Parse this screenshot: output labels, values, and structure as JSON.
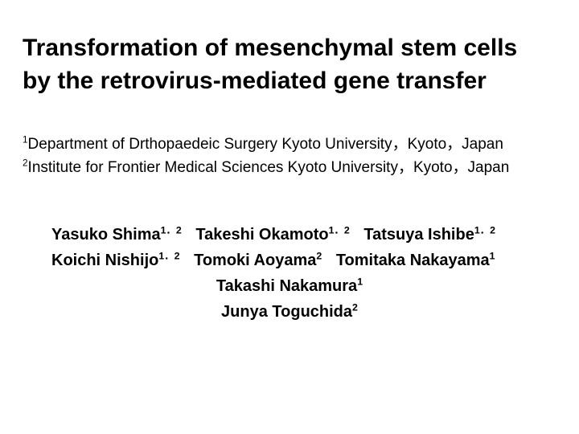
{
  "title_line1": "Transformation of mesenchymal stem cells",
  "title_line2": "by the retrovirus-mediated gene transfer",
  "affiliations": [
    {
      "num": "1",
      "text": "Department of Drthopaedeic Surgery Kyoto University，Kyoto，Japan"
    },
    {
      "num": "2",
      "text": "Institute for Frontier Medical Sciences Kyoto University，Kyoto，Japan"
    }
  ],
  "author_lines": [
    {
      "center": false,
      "authors": [
        {
          "name": "Yasuko Shima",
          "sup": "1．2"
        },
        {
          "name": "Takeshi Okamoto",
          "sup": "1．2"
        },
        {
          "name": "Tatsuya Ishibe",
          "sup": "1．2"
        }
      ]
    },
    {
      "center": false,
      "authors": [
        {
          "name": "Koichi Nishijo",
          "sup": "1．2"
        },
        {
          "name": "Tomoki Aoyama",
          "sup": "2"
        },
        {
          "name": "Tomitaka Nakayama",
          "sup": "1"
        }
      ]
    },
    {
      "center": true,
      "authors": [
        {
          "name": "Takashi Nakamura",
          "sup": "1"
        }
      ]
    },
    {
      "center": true,
      "authors": [
        {
          "name": "Junya Toguchida",
          "sup": "2"
        }
      ]
    }
  ],
  "colors": {
    "background": "#ffffff",
    "text": "#000000"
  },
  "typography": {
    "title_fontsize": 30,
    "affil_fontsize": 19,
    "author_fontsize": 20,
    "font_family": "Comic Sans MS"
  }
}
